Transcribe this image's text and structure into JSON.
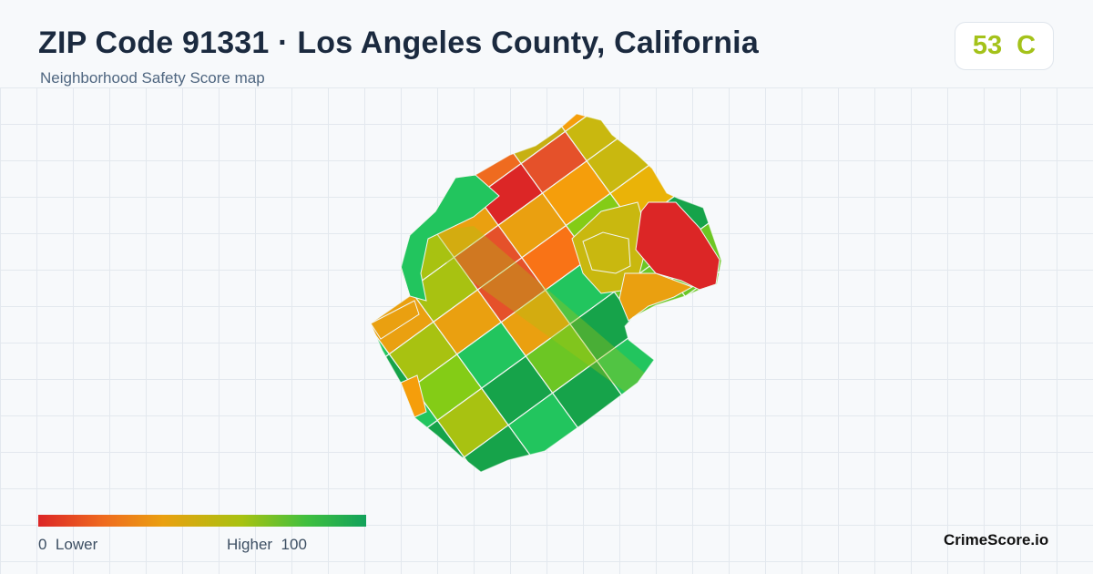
{
  "header": {
    "title": "ZIP Code 91331 · Los Angeles County, California",
    "subtitle": "Neighborhood Safety Score map"
  },
  "score_badge": {
    "score": "53",
    "grade": "C",
    "color": "#a4c21a"
  },
  "legend": {
    "low_value": "0",
    "low_label": "Lower",
    "high_label": "Higher",
    "high_value": "100",
    "colors": [
      "#dc2626",
      "#ef6b1f",
      "#eaa010",
      "#a8c211",
      "#3fbf3f",
      "#12a25b"
    ]
  },
  "brand": "CrimeScore.io"
}
